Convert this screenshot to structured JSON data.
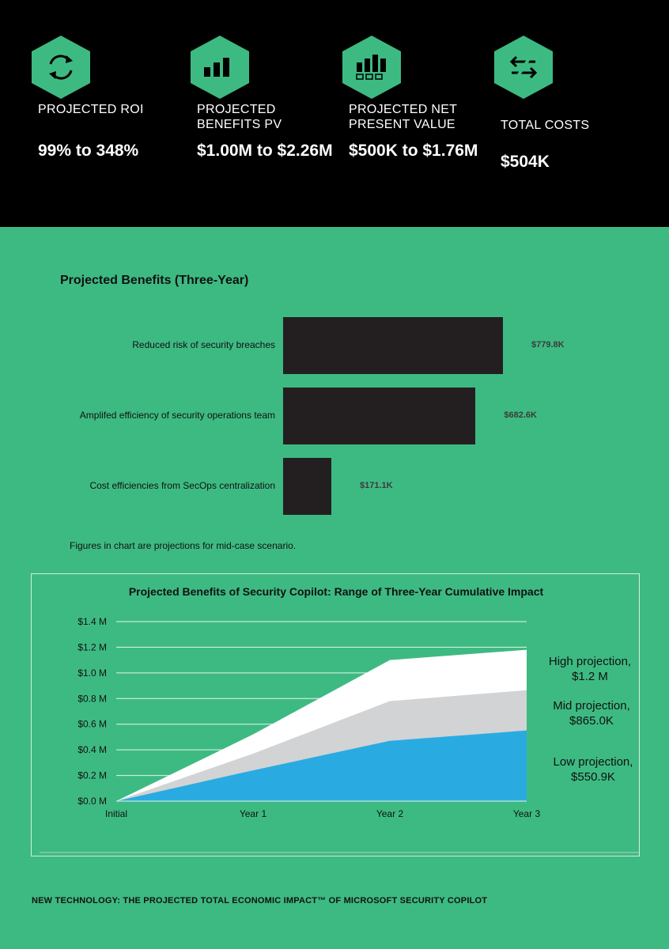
{
  "colors": {
    "top_band": "#000000",
    "page_bg": "#3dba82",
    "hex_fill": "#3dba82",
    "bar_fill": "#231f20",
    "high_area": "#ffffff",
    "mid_area": "#d1d3d4",
    "low_area": "#29abe2"
  },
  "metrics": [
    {
      "icon": "refresh-arrows-icon",
      "label": "PROJECTED ROI",
      "value": "99% to 348%"
    },
    {
      "icon": "bar-chart-icon",
      "label": "PROJECTED BENEFITS PV",
      "value": "$1.00M to $2.26M"
    },
    {
      "icon": "chart-boxes-icon",
      "label": "PROJECTED NET PRESENT VALUE",
      "value": "$500K to $1.76M"
    },
    {
      "icon": "swap-arrows-icon",
      "label": "TOTAL COSTS",
      "value": "$504K"
    }
  ],
  "bar_section": {
    "title": "Projected Benefits (Three-Year)",
    "note": "Figures in chart are projections for mid-case scenario."
  },
  "area_section": {
    "title": "Projected Benefits of Security Copilot: Range of Three-Year Cumulative Impact",
    "labels": [
      {
        "line1": "High projection,",
        "line2": "$1.2 M"
      },
      {
        "line1": "Mid projection,",
        "line2": "$865.0K"
      },
      {
        "line1": "Low projection,",
        "line2": "$550.9K"
      }
    ]
  },
  "chart_data": [
    {
      "type": "bar",
      "orientation": "horizontal",
      "title": "Projected Benefits (Three-Year)",
      "categories": [
        "Reduced risk of security breaches",
        "Amplifed efficiency of security operations team",
        "Cost efficiencies from SecOps centralization"
      ],
      "values": [
        779.8,
        682.6,
        171.1
      ],
      "value_labels": [
        "$779.8K",
        "$682.6K",
        "$171.1K"
      ],
      "grid": false
    },
    {
      "type": "area",
      "title": "Projected Benefits of Security Copilot: Range of Three-Year Cumulative Impact",
      "categories": [
        "Initial",
        "Year 1",
        "Year 2",
        "Year 3"
      ],
      "ylim": [
        0,
        1.4
      ],
      "yticks": [
        "$0.0 M",
        "$0.2 M",
        "$0.4 M",
        "$0.6 M",
        "$0.8 M",
        "$1.0 M",
        "$1.2 M",
        "$1.4 M"
      ],
      "series": [
        {
          "name": "High projection",
          "values": [
            0,
            0.52,
            1.1,
            1.18
          ]
        },
        {
          "name": "Mid projection",
          "values": [
            0,
            0.37,
            0.78,
            0.865
          ]
        },
        {
          "name": "Low projection",
          "values": [
            0,
            0.24,
            0.47,
            0.5509
          ]
        }
      ],
      "grid": true
    }
  ],
  "footer": "NEW TECHNOLOGY: THE PROJECTED TOTAL ECONOMIC IMPACT™ OF MICROSOFT SECURITY COPILOT"
}
